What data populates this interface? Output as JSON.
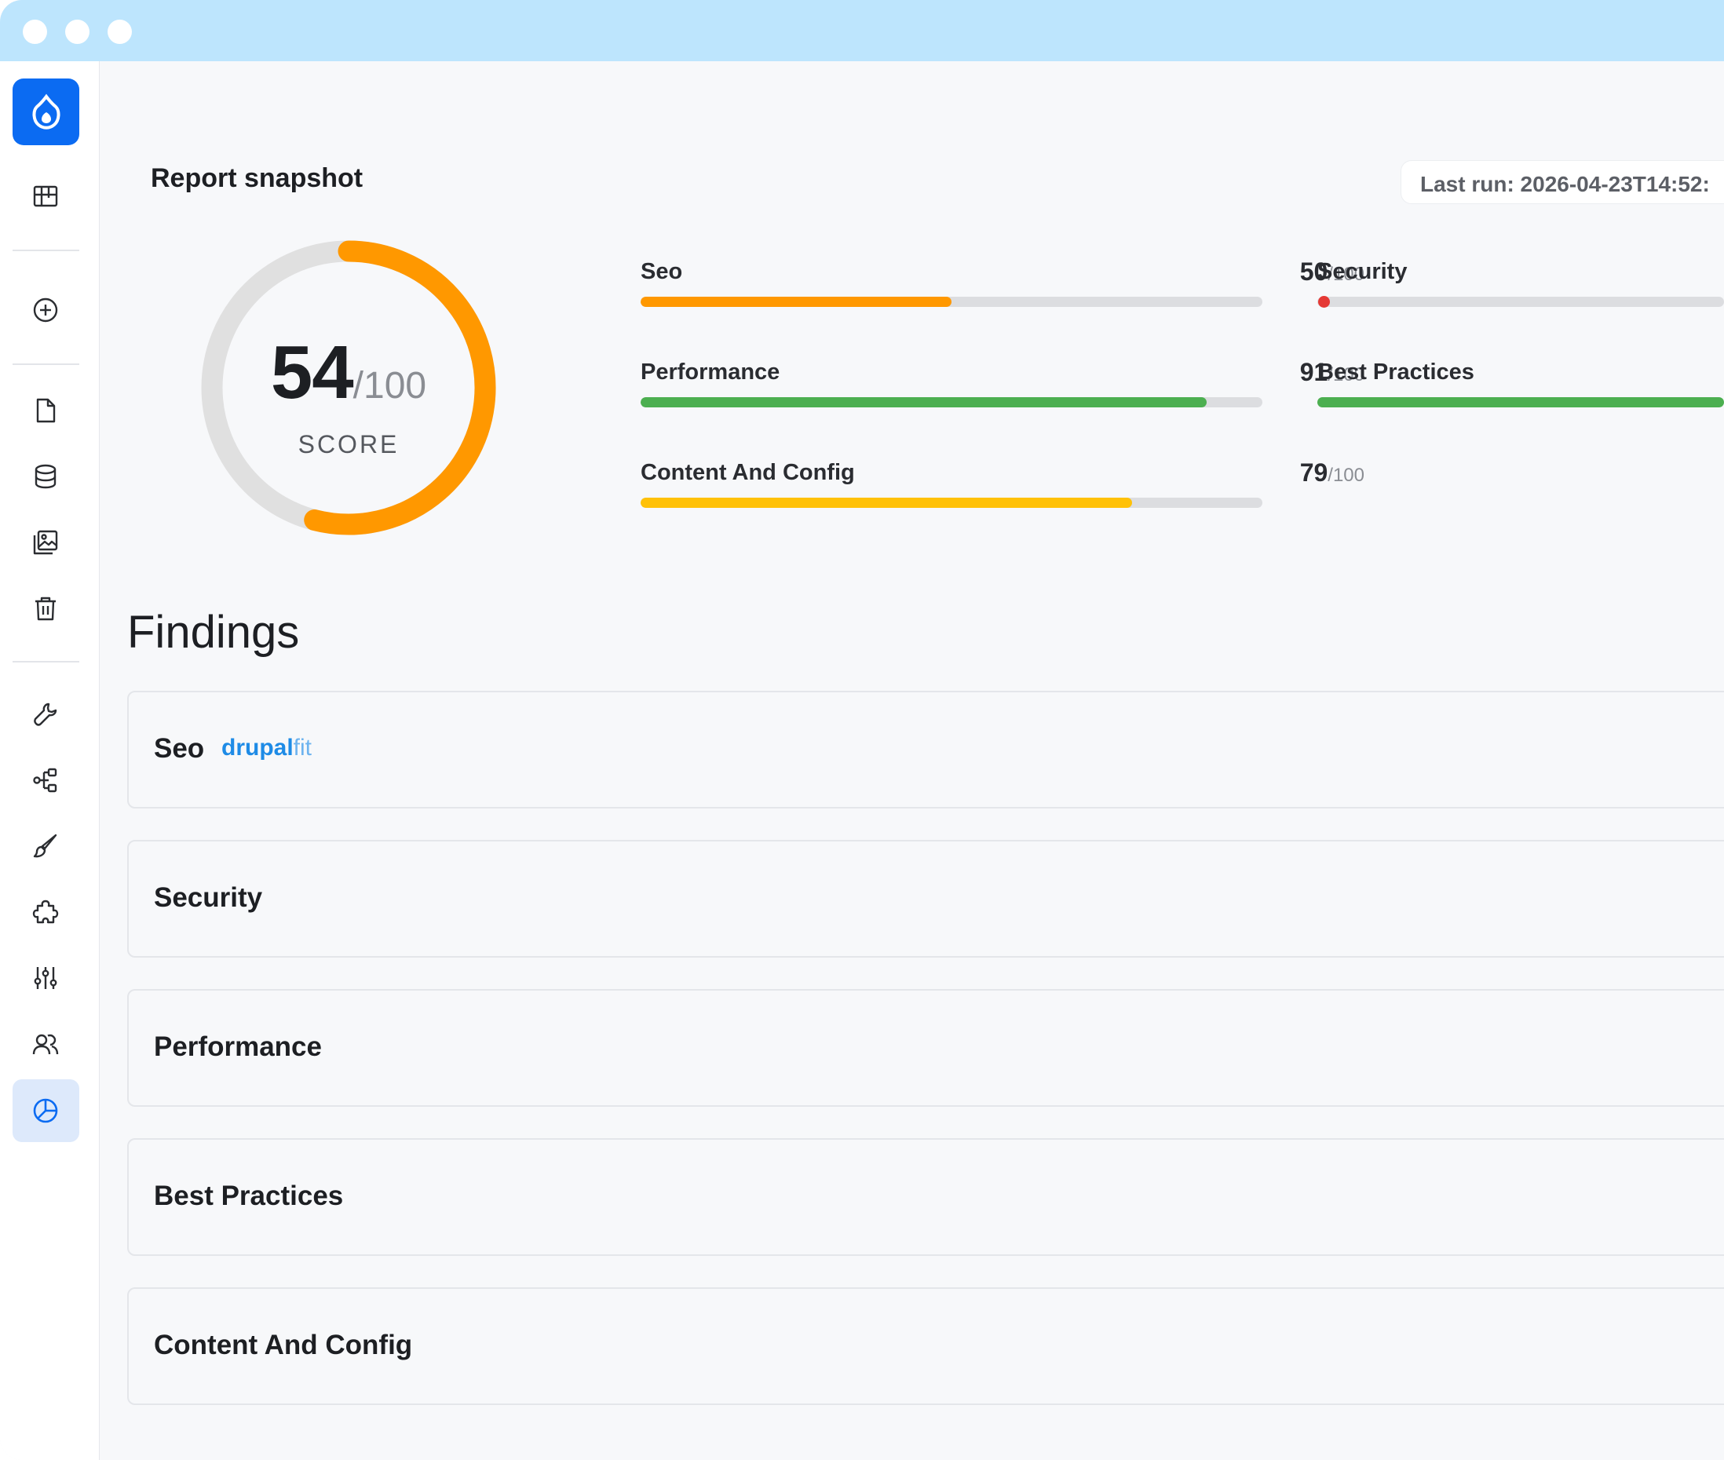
{
  "header": {
    "title": "Report snapshot",
    "last_run": "Last run: 2026-04-23T14:52:"
  },
  "score": {
    "value": 54,
    "value_text": "54",
    "max_text": "/100",
    "label": "SCORE"
  },
  "metrics": [
    {
      "name": "Seo",
      "score": 50,
      "score_text": "50",
      "max_text": "/100",
      "color": "#ff9800"
    },
    {
      "name": "Performance",
      "score": 91,
      "score_text": "91",
      "max_text": "/100",
      "color": "#4caf50"
    },
    {
      "name": "Content And Config",
      "score": 79,
      "score_text": "79",
      "max_text": "/100",
      "color": "#ffc107"
    },
    {
      "name": "Security",
      "score": 0,
      "color": "#e53935"
    },
    {
      "name": "Best Practices",
      "color": "#4caf50"
    }
  ],
  "findings": {
    "title": "Findings",
    "items": [
      {
        "label": "Seo",
        "tag_a": "drupal",
        "tag_b": "fit"
      },
      {
        "label": "Security"
      },
      {
        "label": "Performance"
      },
      {
        "label": "Best Practices"
      },
      {
        "label": "Content And Config"
      }
    ]
  },
  "sidebar": {
    "icons": [
      "drupal-logo-icon",
      "grid-icon",
      "add-circle-icon",
      "document-icon",
      "database-icon",
      "image-gallery-icon",
      "trash-icon",
      "wrench-icon",
      "structure-icon",
      "brush-icon",
      "puzzle-icon",
      "sliders-icon",
      "users-icon",
      "reports-pie-icon"
    ],
    "active": "reports-pie-icon"
  },
  "colors": {
    "accent": "#0b6bf2",
    "titlebar": "#bde5fd",
    "gauge": "#ff9800",
    "gauge_track": "#e0e0e0"
  }
}
